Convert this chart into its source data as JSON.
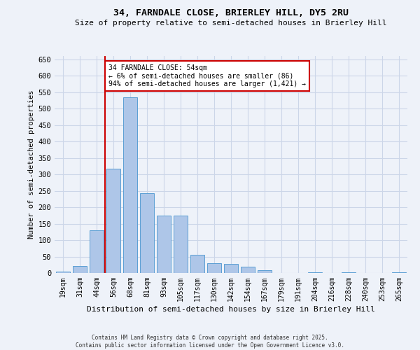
{
  "title1": "34, FARNDALE CLOSE, BRIERLEY HILL, DY5 2RU",
  "title2": "Size of property relative to semi-detached houses in Brierley Hill",
  "xlabel": "Distribution of semi-detached houses by size in Brierley Hill",
  "ylabel": "Number of semi-detached properties",
  "categories": [
    "19sqm",
    "31sqm",
    "44sqm",
    "56sqm",
    "68sqm",
    "81sqm",
    "93sqm",
    "105sqm",
    "117sqm",
    "130sqm",
    "142sqm",
    "154sqm",
    "167sqm",
    "179sqm",
    "191sqm",
    "204sqm",
    "216sqm",
    "228sqm",
    "240sqm",
    "253sqm",
    "265sqm"
  ],
  "values": [
    5,
    22,
    130,
    318,
    535,
    242,
    174,
    174,
    55,
    30,
    28,
    20,
    8,
    0,
    0,
    3,
    0,
    2,
    0,
    0,
    3
  ],
  "bar_color": "#aec6e8",
  "bar_edge_color": "#5a9fd4",
  "annotation_text": "34 FARNDALE CLOSE: 54sqm\n← 6% of semi-detached houses are smaller (86)\n94% of semi-detached houses are larger (1,421) →",
  "annotation_box_color": "#ffffff",
  "annotation_border_color": "#cc0000",
  "vline_color": "#cc0000",
  "vline_x_index": 2.5,
  "ylim": [
    0,
    660
  ],
  "yticks": [
    0,
    50,
    100,
    150,
    200,
    250,
    300,
    350,
    400,
    450,
    500,
    550,
    600,
    650
  ],
  "grid_color": "#ccd6e8",
  "background_color": "#eef2f9",
  "footer1": "Contains HM Land Registry data © Crown copyright and database right 2025.",
  "footer2": "Contains public sector information licensed under the Open Government Licence v3.0."
}
